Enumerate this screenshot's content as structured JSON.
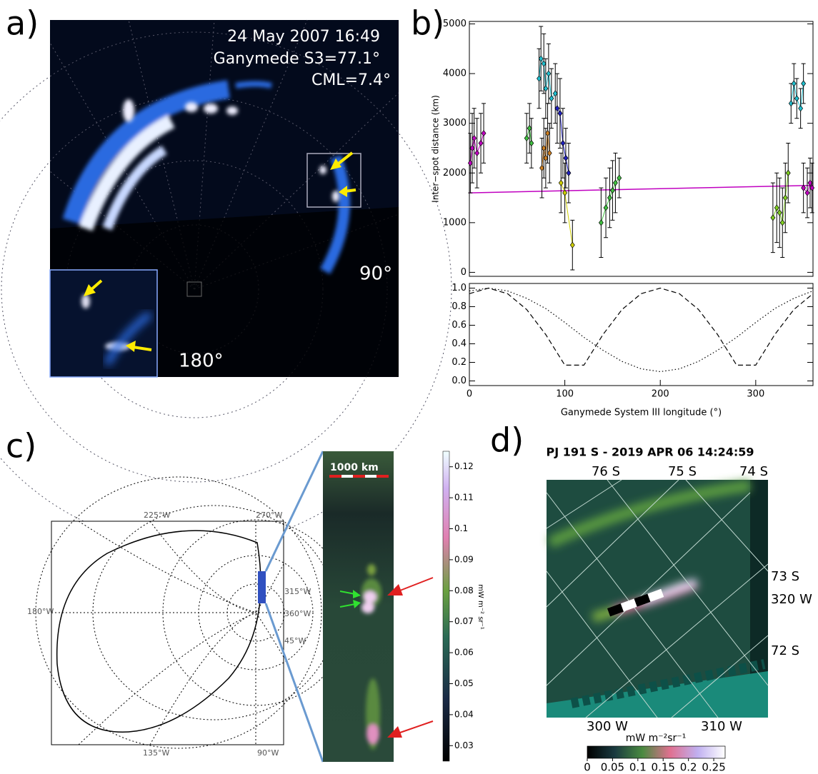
{
  "panels": {
    "a": {
      "label": "a)",
      "date": "24 May 2007 16:49",
      "s3": "Ganymede S3=77.1°",
      "cml": "CML=7.4°",
      "lon_90": "90°",
      "lon_180": "180°"
    },
    "b": {
      "label": "b)"
    },
    "c": {
      "label": "c)",
      "map_labels": [
        "225°W",
        "270°W",
        "315°W",
        "360°W",
        "45°W",
        "180°W",
        "135°W",
        "90°W"
      ],
      "scale": "1000 km",
      "colorbar": {
        "label": "mW m⁻² sr⁻¹",
        "ylim": [
          0.025,
          0.125
        ],
        "ticks": [
          0.12,
          0.11,
          0.1,
          0.09,
          0.08,
          0.07,
          0.06,
          0.05,
          0.04,
          0.03
        ]
      }
    },
    "d": {
      "label": "d)",
      "title": "PJ 191 S - 2019 APR 06 14:24:59",
      "grid_labels": [
        "76 S",
        "75 S",
        "74 S",
        "73 S",
        "320 W",
        "72 S",
        "300 W",
        "310 W"
      ],
      "colorbar": {
        "label": "mW m⁻²sr⁻¹",
        "xlim": [
          0,
          0.2725
        ],
        "ticks": [
          0,
          0.05,
          0.1,
          0.15,
          0.2,
          0.25
        ]
      }
    }
  },
  "chart_data": [
    {
      "type": "errorbar",
      "ylabel": "Inter−spot distance (km)",
      "xlim": [
        0,
        360
      ],
      "ylim": [
        -80,
        5050
      ],
      "yticks": [
        0,
        1000,
        2000,
        3000,
        4000,
        5000
      ],
      "series": [
        {
          "mode": "line",
          "color": "#c000c0",
          "x": [
            0,
            360
          ],
          "values": [
            1600,
            1750
          ]
        },
        {
          "mode": "points",
          "color": "#c000c0",
          "x": [
            1,
            3,
            5,
            8,
            12,
            15
          ],
          "values": [
            2200,
            2500,
            2700,
            2400,
            2600,
            2800
          ],
          "errors": [
            600,
            700,
            600,
            700,
            600,
            600
          ]
        },
        {
          "mode": "points",
          "color": "#40c040",
          "x": [
            60,
            63,
            65
          ],
          "values": [
            2700,
            2900,
            2600
          ],
          "errors": [
            500,
            500,
            500
          ]
        },
        {
          "mode": "points",
          "color": "#20c0d0",
          "x": [
            73,
            75,
            78,
            80,
            83,
            86,
            90
          ],
          "values": [
            3900,
            4300,
            4200,
            3700,
            4000,
            3500,
            3600
          ],
          "errors": [
            600,
            650,
            600,
            600,
            600,
            600,
            600
          ]
        },
        {
          "mode": "points",
          "color": "#d08020",
          "x": [
            76,
            78,
            80,
            82,
            84
          ],
          "values": [
            2100,
            2500,
            2300,
            2800,
            2400
          ],
          "errors": [
            600,
            600,
            600,
            600,
            600
          ]
        },
        {
          "mode": "points",
          "color": "#2020c0",
          "x": [
            92,
            95,
            98,
            101,
            104
          ],
          "values": [
            3300,
            3200,
            2600,
            2300,
            2000
          ],
          "errors": [
            700,
            700,
            700,
            600,
            600
          ]
        },
        {
          "mode": "points",
          "color": "#d0d000",
          "x": [
            96,
            100,
            108
          ],
          "values": [
            1800,
            1600,
            550
          ],
          "errors": [
            600,
            600,
            500
          ]
        },
        {
          "mode": "points",
          "color": "#40c040",
          "x": [
            138,
            143,
            147,
            150,
            153,
            157
          ],
          "values": [
            1000,
            1300,
            1500,
            1650,
            1800,
            1900
          ],
          "errors": [
            700,
            600,
            600,
            600,
            600,
            400
          ]
        },
        {
          "mode": "points",
          "color": "#80d020",
          "x": [
            318,
            322,
            325,
            328,
            331,
            334
          ],
          "values": [
            1100,
            1300,
            1200,
            1000,
            1500,
            2000
          ],
          "errors": [
            700,
            700,
            700,
            700,
            700,
            600
          ]
        },
        {
          "mode": "points",
          "color": "#20c0d0",
          "x": [
            337,
            340,
            343,
            347,
            350
          ],
          "values": [
            3400,
            3800,
            3500,
            3300,
            3800
          ],
          "errors": [
            400,
            400,
            400,
            400,
            400
          ]
        },
        {
          "mode": "points",
          "color": "#c000c0",
          "x": [
            350,
            354,
            357,
            359
          ],
          "values": [
            1700,
            1600,
            1800,
            1700
          ],
          "errors": [
            500,
            500,
            500,
            500
          ]
        }
      ]
    },
    {
      "type": "line",
      "xlabel": "Ganymede System III longitude (°)",
      "xlim": [
        0,
        360
      ],
      "ylim": [
        -0.05,
        1.05
      ],
      "xticks": [
        0,
        100,
        200,
        300
      ],
      "yticks": [
        {
          "value": 0,
          "label": "0.0"
        },
        0.2,
        0.4,
        0.6,
        0.8,
        {
          "value": 1,
          "label": "1.0"
        }
      ],
      "x": [
        0,
        20,
        40,
        60,
        80,
        100,
        120,
        140,
        160,
        180,
        200,
        220,
        240,
        260,
        280,
        300,
        320,
        340,
        360
      ],
      "series": [
        {
          "dash": "dashed",
          "values": [
            0.94,
            1,
            0.94,
            0.77,
            0.5,
            0.17,
            0.17,
            0.5,
            0.77,
            0.94,
            1,
            0.94,
            0.77,
            0.5,
            0.17,
            0.17,
            0.5,
            0.77,
            0.94
          ]
        },
        {
          "dash": "dotted",
          "values": [
            0.97,
            1,
            0.97,
            0.89,
            0.78,
            0.63,
            0.47,
            0.33,
            0.21,
            0.13,
            0.1,
            0.13,
            0.21,
            0.33,
            0.47,
            0.63,
            0.78,
            0.89,
            0.97
          ]
        }
      ]
    }
  ]
}
